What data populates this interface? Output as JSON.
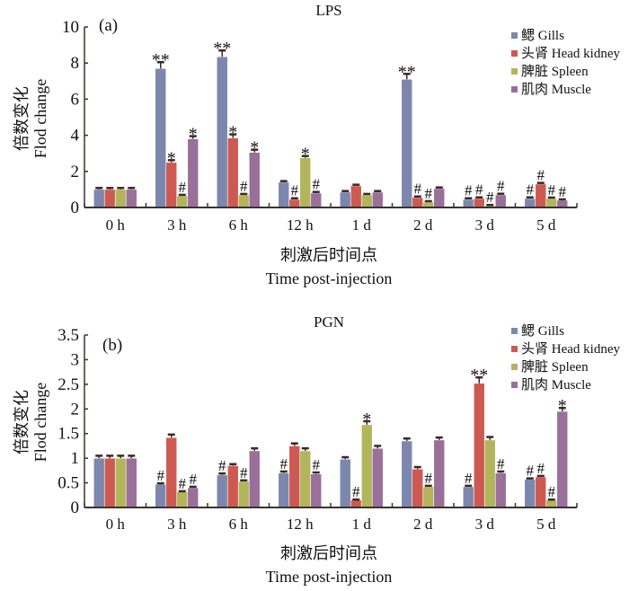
{
  "colors": {
    "gills": "#7c87ad",
    "head_kidney": "#cd5a52",
    "spleen": "#b2b55c",
    "muscle": "#9a6f9a",
    "axis": "#3a332e",
    "error_bar": "#3a2a22"
  },
  "chart_data": [
    {
      "type": "bar",
      "panel_label": "(a)",
      "title": "LPS",
      "xlabel_cn": "刺激后时间点",
      "xlabel": "Time post-injection",
      "ylabel_cn": "倍数变化",
      "ylabel": "Flod change",
      "ylim": [
        0,
        10
      ],
      "yticks": [
        0,
        2,
        4,
        6,
        8,
        10
      ],
      "ytick_labels": [
        "0",
        "2",
        "4",
        "6",
        "8",
        "10"
      ],
      "categories": [
        "0 h",
        "3 h",
        "6 h",
        "12 h",
        "1 d",
        "2 d",
        "3 d",
        "5 d"
      ],
      "legend_position": "top-right",
      "series": [
        {
          "key": "gills",
          "name": "鳃 Gills",
          "values": [
            1.0,
            7.7,
            8.35,
            1.4,
            0.85,
            7.1,
            0.45,
            0.5
          ],
          "errors": [
            0.08,
            0.35,
            0.35,
            0.06,
            0.06,
            0.3,
            0.06,
            0.06
          ],
          "annotations": [
            "",
            "**",
            "**",
            "",
            "",
            "**",
            "#",
            "#"
          ]
        },
        {
          "key": "head_kidney",
          "name": "头肾 Head kidney",
          "values": [
            1.0,
            2.5,
            3.85,
            0.45,
            1.2,
            0.55,
            0.5,
            1.3
          ],
          "errors": [
            0.08,
            0.12,
            0.2,
            0.06,
            0.06,
            0.06,
            0.06,
            0.06
          ],
          "annotations": [
            "",
            "*",
            "*",
            "#",
            "",
            "#",
            "#",
            "#"
          ]
        },
        {
          "key": "spleen",
          "name": "脾脏 Spleen",
          "values": [
            1.0,
            0.65,
            0.7,
            2.75,
            0.7,
            0.3,
            0.1,
            0.5
          ],
          "errors": [
            0.08,
            0.05,
            0.05,
            0.1,
            0.05,
            0.05,
            0.04,
            0.05
          ],
          "annotations": [
            "",
            "#",
            "#",
            "*",
            "",
            "#",
            "#",
            "#"
          ]
        },
        {
          "key": "muscle",
          "name": "肌肉 Muscle",
          "values": [
            1.0,
            3.8,
            3.05,
            0.8,
            0.85,
            1.05,
            0.7,
            0.4
          ],
          "errors": [
            0.08,
            0.15,
            0.15,
            0.06,
            0.06,
            0.06,
            0.06,
            0.05
          ],
          "annotations": [
            "",
            "*",
            "*",
            "#",
            "",
            "",
            "#",
            "#"
          ]
        }
      ]
    },
    {
      "type": "bar",
      "panel_label": "(b)",
      "title": "PGN",
      "xlabel_cn": "刺激后时间点",
      "xlabel": "Time post-injection",
      "ylabel_cn": "倍数变化",
      "ylabel": "Flod change",
      "ylim": [
        0,
        3.5
      ],
      "yticks": [
        0,
        0.5,
        1,
        1.5,
        2,
        2.5,
        3,
        3.5
      ],
      "ytick_labels": [
        "0",
        "0.5",
        "1",
        "1.5",
        "2",
        "2.5",
        "3",
        "3.5"
      ],
      "categories": [
        "0 h",
        "3 h",
        "6 h",
        "12 h",
        "1 d",
        "2 d",
        "3 d",
        "5 d"
      ],
      "legend_position": "top-right",
      "series": [
        {
          "key": "gills",
          "name": "鳃 Gills",
          "values": [
            1.0,
            0.47,
            0.66,
            0.7,
            0.98,
            1.35,
            0.42,
            0.57
          ],
          "errors": [
            0.05,
            0.02,
            0.03,
            0.03,
            0.04,
            0.05,
            0.02,
            0.02
          ],
          "annotations": [
            "",
            "#",
            "#",
            "#",
            "",
            "",
            "#",
            "#"
          ]
        },
        {
          "key": "head_kidney",
          "name": "头肾 Head kidney",
          "values": [
            1.0,
            1.42,
            0.85,
            1.25,
            0.15,
            0.78,
            2.52,
            0.62
          ],
          "errors": [
            0.05,
            0.06,
            0.03,
            0.05,
            0.01,
            0.04,
            0.12,
            0.02
          ],
          "annotations": [
            "",
            "",
            "",
            "",
            "#",
            "",
            "**",
            "#"
          ]
        },
        {
          "key": "spleen",
          "name": "脾脏 Spleen",
          "values": [
            1.0,
            0.32,
            0.53,
            1.15,
            1.68,
            0.42,
            1.37,
            0.15
          ],
          "errors": [
            0.05,
            0.01,
            0.02,
            0.05,
            0.07,
            0.02,
            0.06,
            0.01
          ],
          "annotations": [
            "",
            "#",
            "#",
            "",
            "*",
            "#",
            "",
            "#"
          ]
        },
        {
          "key": "muscle",
          "name": "肌肉 Muscle",
          "values": [
            1.0,
            0.4,
            1.15,
            0.68,
            1.2,
            1.37,
            0.7,
            1.95
          ],
          "errors": [
            0.05,
            0.02,
            0.05,
            0.03,
            0.05,
            0.05,
            0.03,
            0.07
          ],
          "annotations": [
            "",
            "#",
            "",
            "#",
            "",
            "",
            "#",
            "*"
          ]
        }
      ]
    }
  ]
}
